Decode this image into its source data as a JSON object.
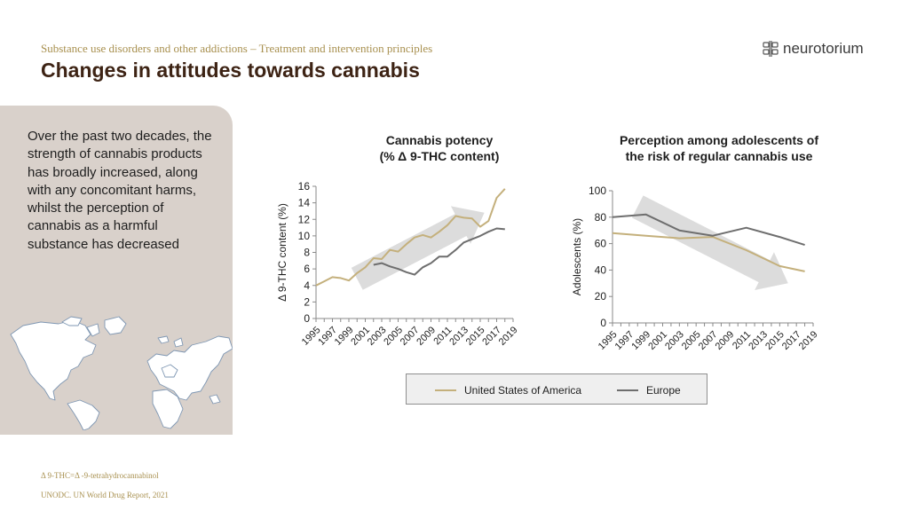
{
  "header": {
    "subtitle": "Substance use disorders and other addictions – Treatment and intervention principles",
    "title": "Changes in attitudes towards cannabis",
    "logo_text": "neurotorium",
    "logo_icon": "brain-icon"
  },
  "side": {
    "text": "Over the past two decades, the strength of cannabis products has broadly increased, along with any concomitant harms, whilst the perception of cannabis as a harmful substance has decreased",
    "map_icon": "world-map-icon"
  },
  "colors": {
    "usa": "#c4b07c",
    "europe": "#6e6e6e",
    "trend_arrow": "#dcdcdc",
    "accent": "#a8904f",
    "title": "#3d2314"
  },
  "chart_data": [
    {
      "type": "line",
      "title": "Cannabis potency (% Δ 9-THC content)",
      "title_line1": "Cannabis potency",
      "title_line2": "(% Δ 9-THC content)",
      "ylabel": "Δ 9-THC content (%)",
      "xlabel": "",
      "ylim": [
        0,
        16
      ],
      "yticks": [
        0,
        2,
        4,
        6,
        8,
        10,
        12,
        14,
        16
      ],
      "xlim": [
        1995,
        2019
      ],
      "xticks": [
        1995,
        1997,
        1999,
        2001,
        2003,
        2005,
        2007,
        2009,
        2011,
        2013,
        2015,
        2017,
        2019
      ],
      "trend_arrow": "increasing",
      "series": [
        {
          "name": "United States of America",
          "x": [
            1995,
            1996,
            1997,
            1998,
            1999,
            2000,
            2001,
            2002,
            2003,
            2004,
            2005,
            2006,
            2007,
            2008,
            2009,
            2010,
            2011,
            2012,
            2013,
            2014,
            2015,
            2016,
            2017,
            2018
          ],
          "y": [
            4.0,
            4.5,
            5.0,
            4.9,
            4.6,
            5.5,
            6.2,
            7.3,
            7.2,
            8.3,
            8.1,
            9.0,
            9.8,
            10.1,
            9.8,
            10.5,
            11.3,
            12.4,
            12.2,
            12.1,
            11.1,
            11.8,
            14.6,
            15.7
          ]
        },
        {
          "name": "Europe",
          "x": [
            2002,
            2003,
            2004,
            2005,
            2006,
            2007,
            2008,
            2009,
            2010,
            2011,
            2012,
            2013,
            2014,
            2015,
            2016,
            2017,
            2018
          ],
          "y": [
            6.5,
            6.7,
            6.3,
            6.0,
            5.6,
            5.3,
            6.2,
            6.7,
            7.5,
            7.5,
            8.3,
            9.2,
            9.6,
            10.0,
            10.5,
            10.9,
            10.8
          ]
        }
      ]
    },
    {
      "type": "line",
      "title": "Perception among adolescents of the risk of regular cannabis use",
      "title_line1": "Perception among adolescents of",
      "title_line2": "the risk of regular cannabis use",
      "ylabel": "Adolescents (%)",
      "xlabel": "",
      "ylim": [
        0,
        100
      ],
      "yticks": [
        0,
        20,
        40,
        60,
        80,
        100
      ],
      "xlim": [
        1995,
        2019
      ],
      "xticks": [
        1995,
        1997,
        1999,
        2001,
        2003,
        2005,
        2007,
        2009,
        2011,
        2013,
        2015,
        2017,
        2019
      ],
      "trend_arrow": "decreasing",
      "series": [
        {
          "name": "United States of America",
          "x": [
            1995,
            1999,
            2003,
            2007,
            2011,
            2015,
            2018
          ],
          "y": [
            68,
            66,
            64,
            65,
            55,
            43,
            39
          ]
        },
        {
          "name": "Europe",
          "x": [
            1995,
            1999,
            2003,
            2007,
            2011,
            2015,
            2018
          ],
          "y": [
            80,
            82,
            70,
            66,
            72,
            65,
            59
          ]
        }
      ]
    }
  ],
  "legend": {
    "items": [
      {
        "label": "United States of America"
      },
      {
        "label": "Europe"
      }
    ]
  },
  "footnotes": {
    "abbreviation": "Δ 9-THC=Δ -9-tetrahydrocannabinol",
    "source": "UNODC. UN World Drug Report, 2021"
  }
}
